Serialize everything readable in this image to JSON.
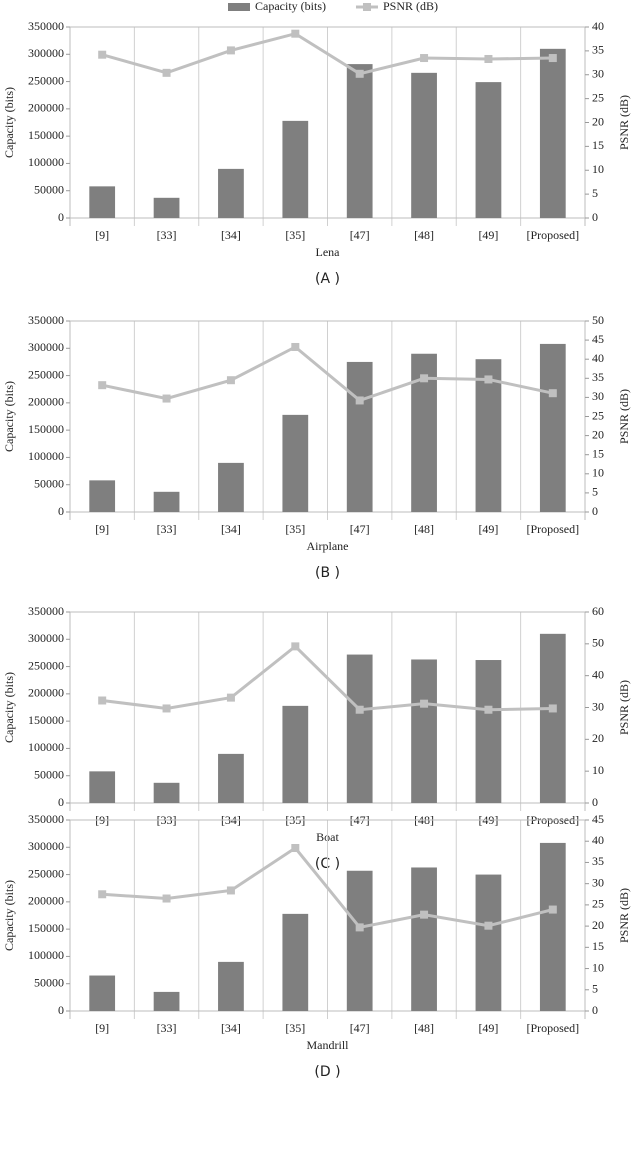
{
  "chart_data": [
    {
      "type": "bar",
      "caption": "(A )",
      "xlabel": "Lena",
      "ylabel": "Capacity (bits)",
      "y2label": "PSNR (dB)",
      "categories": [
        "[9]",
        "[33]",
        "[34]",
        "[35]",
        "[47]",
        "[48]",
        "[49]",
        "[Proposed]"
      ],
      "series": [
        {
          "name": "Capacity (bits)",
          "type": "bar",
          "color": "#7f7f7f",
          "values": [
            58000,
            37000,
            90000,
            178000,
            282000,
            266000,
            249000,
            310000
          ]
        },
        {
          "name": "PSNR (dB)",
          "type": "line",
          "axis": "y2",
          "color": "#c0c0c0",
          "values": [
            34.2,
            30.4,
            35.1,
            38.6,
            30.2,
            33.5,
            33.3,
            33.5
          ]
        }
      ],
      "ylim": [
        0,
        350000
      ],
      "yticks": [
        0,
        50000,
        100000,
        150000,
        200000,
        250000,
        300000,
        350000
      ],
      "y2lim": [
        0,
        40
      ],
      "y2ticks": [
        0,
        5,
        10,
        15,
        20,
        25,
        30,
        35,
        40
      ],
      "grid": true
    },
    {
      "type": "bar",
      "caption": "(B )",
      "xlabel": "Airplane",
      "ylabel": "Capacity (bits)",
      "y2label": "PSNR (dB)",
      "categories": [
        "[9]",
        "[33]",
        "[34]",
        "[35]",
        "[47]",
        "[48]",
        "[49]",
        "[Proposed]"
      ],
      "series": [
        {
          "type": "bar",
          "color": "#7f7f7f",
          "values": [
            58000,
            37000,
            90000,
            178000,
            275000,
            290000,
            280000,
            308000
          ]
        },
        {
          "type": "line",
          "axis": "y2",
          "color": "#c0c0c0",
          "values": [
            33.2,
            29.7,
            34.5,
            43.2,
            29.2,
            35,
            34.7,
            31.1
          ]
        }
      ],
      "ylim": [
        0,
        350000
      ],
      "yticks": [
        0,
        50000,
        100000,
        150000,
        200000,
        250000,
        300000,
        350000
      ],
      "y2lim": [
        0,
        50
      ],
      "y2ticks": [
        0,
        5,
        10,
        15,
        20,
        25,
        30,
        35,
        40,
        45,
        50
      ],
      "grid": true
    },
    {
      "type": "bar",
      "caption": "(C )",
      "xlabel": "Boat",
      "ylabel": "Capacity (bits)",
      "y2label": "PSNR (dB)",
      "categories": [
        "[9]",
        "[33]",
        "[34]",
        "[35]",
        "[47]",
        "[48]",
        "[49]",
        "[Proposed]"
      ],
      "series": [
        {
          "type": "bar",
          "color": "#7f7f7f",
          "values": [
            58000,
            37000,
            90000,
            178000,
            272000,
            263000,
            262000,
            310000
          ]
        },
        {
          "type": "line",
          "axis": "y2",
          "color": "#c0c0c0",
          "values": [
            32.2,
            29.7,
            33.1,
            49.2,
            29.3,
            31.2,
            29.3,
            29.7
          ]
        }
      ],
      "ylim": [
        0,
        350000
      ],
      "yticks": [
        0,
        50000,
        100000,
        150000,
        200000,
        250000,
        300000,
        350000
      ],
      "y2lim": [
        0,
        60
      ],
      "y2ticks": [
        0,
        10,
        20,
        30,
        40,
        50,
        60
      ],
      "grid": true
    },
    {
      "type": "bar",
      "caption": "(D )",
      "xlabel": "Mandrill",
      "ylabel": "Capacity (bits)",
      "y2label": "PSNR (dB)",
      "categories": [
        "[9]",
        "[33]",
        "[34]",
        "[35]",
        "[47]",
        "[48]",
        "[49]",
        "[Proposed]"
      ],
      "series": [
        {
          "type": "bar",
          "color": "#7f7f7f",
          "values": [
            65000,
            35000,
            90000,
            178000,
            257000,
            263000,
            250000,
            308000
          ]
        },
        {
          "type": "line",
          "axis": "y2",
          "color": "#c0c0c0",
          "values": [
            27.5,
            26.5,
            28.4,
            38.4,
            19.7,
            22.7,
            20.1,
            23.9
          ]
        }
      ],
      "ylim": [
        0,
        350000
      ],
      "yticks": [
        0,
        50000,
        100000,
        150000,
        200000,
        250000,
        300000,
        350000
      ],
      "y2lim": [
        0,
        45
      ],
      "y2ticks": [
        0,
        5,
        10,
        15,
        20,
        25,
        30,
        35,
        40,
        45
      ],
      "grid": true
    }
  ]
}
